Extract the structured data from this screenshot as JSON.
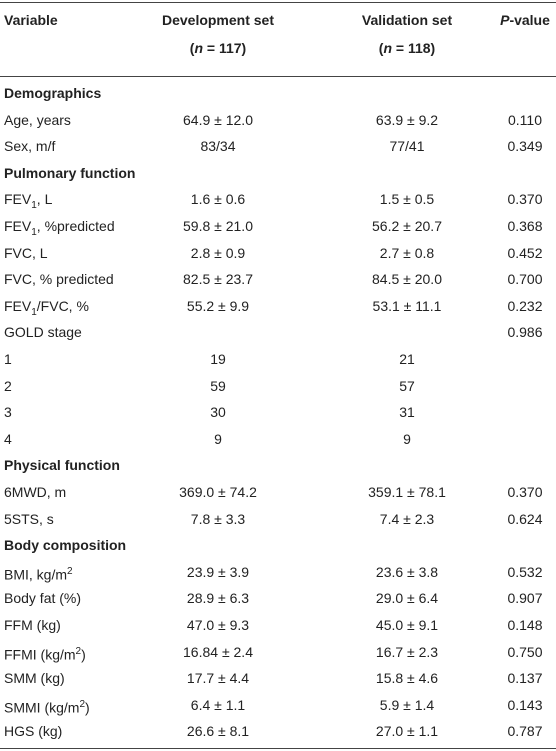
{
  "table": {
    "header": [
      [
        [
          "Variable"
        ]
      ],
      [
        [
          "Development set"
        ],
        [
          "(",
          {
            "italic": "n"
          },
          " = 117)"
        ]
      ],
      [
        [
          "Validation set"
        ],
        [
          "(",
          {
            "italic": "n"
          },
          " = 118)"
        ]
      ],
      [
        [
          {
            "italic": "P"
          },
          "-value"
        ]
      ]
    ],
    "rows": [
      {
        "section": "Demographics"
      },
      {
        "cells": [
          [
            "Age, years"
          ],
          "64.9 ± 12.0",
          "63.9 ± 9.2",
          "0.110"
        ]
      },
      {
        "cells": [
          [
            "Sex, m/f"
          ],
          "83/34",
          "77/41",
          "0.349"
        ]
      },
      {
        "section": "Pulmonary function"
      },
      {
        "cells": [
          [
            "FEV",
            {
              "sub": "1"
            },
            ", L"
          ],
          "1.6 ± 0.6",
          "1.5 ± 0.5",
          "0.370"
        ]
      },
      {
        "cells": [
          [
            "FEV",
            {
              "sub": "1"
            },
            ", %predicted"
          ],
          "59.8 ± 21.0",
          "56.2 ± 20.7",
          "0.368"
        ]
      },
      {
        "cells": [
          [
            "FVC, L"
          ],
          "2.8 ± 0.9",
          "2.7 ± 0.8",
          "0.452"
        ]
      },
      {
        "cells": [
          [
            "FVC, % predicted"
          ],
          "82.5 ± 23.7",
          "84.5 ± 20.0",
          "0.700"
        ]
      },
      {
        "cells": [
          [
            "FEV",
            {
              "sub": "1"
            },
            "/FVC, %"
          ],
          "55.2 ± 9.9",
          "53.1 ± 11.1",
          "0.232"
        ]
      },
      {
        "cells": [
          [
            "GOLD stage"
          ],
          "",
          "",
          "0.986"
        ]
      },
      {
        "cells": [
          [
            "1"
          ],
          "19",
          "21",
          ""
        ]
      },
      {
        "cells": [
          [
            "2"
          ],
          "59",
          "57",
          ""
        ]
      },
      {
        "cells": [
          [
            "3"
          ],
          "30",
          "31",
          ""
        ]
      },
      {
        "cells": [
          [
            "4"
          ],
          "9",
          "9",
          ""
        ]
      },
      {
        "section": "Physical function"
      },
      {
        "cells": [
          [
            "6MWD, m"
          ],
          "369.0 ± 74.2",
          "359.1 ± 78.1",
          "0.370"
        ]
      },
      {
        "cells": [
          [
            "5STS, s"
          ],
          "7.8 ± 3.3",
          "7.4 ± 2.3",
          "0.624"
        ]
      },
      {
        "section": "Body composition"
      },
      {
        "cells": [
          [
            "BMI, kg/m",
            {
              "sup": "2"
            }
          ],
          "23.9 ± 3.9",
          "23.6 ± 3.8",
          "0.532"
        ]
      },
      {
        "cells": [
          [
            "Body fat (%)"
          ],
          "28.9 ± 6.3",
          "29.0 ± 6.4",
          "0.907"
        ]
      },
      {
        "cells": [
          [
            "FFM (kg)"
          ],
          "47.0 ± 9.3",
          "45.0 ± 9.1",
          "0.148"
        ]
      },
      {
        "cells": [
          [
            "FFMI (kg/m",
            {
              "sup": "2"
            },
            ")"
          ],
          "16.84 ± 2.4",
          "16.7 ± 2.3",
          "0.750"
        ]
      },
      {
        "cells": [
          [
            "SMM (kg)"
          ],
          "17.7 ± 4.4",
          "15.8 ± 4.6",
          "0.137"
        ]
      },
      {
        "cells": [
          [
            "SMMI (kg/m",
            {
              "sup": "2"
            },
            ")"
          ],
          "6.4 ± 1.1",
          "5.9 ± 1.4",
          "0.143"
        ]
      },
      {
        "cells": [
          [
            "HGS (kg)"
          ],
          "26.6 ± 8.1",
          "27.0 ± 1.1",
          "0.787"
        ]
      }
    ]
  }
}
